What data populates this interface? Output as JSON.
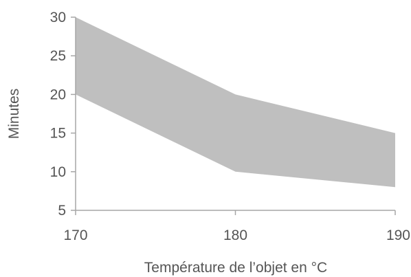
{
  "chart_data": {
    "type": "area",
    "title": "",
    "xlabel": "Température de l’objet en °C",
    "ylabel": "Minutes",
    "x": [
      170,
      180,
      190
    ],
    "xlim": [
      170,
      190
    ],
    "ylim": [
      5,
      30
    ],
    "xticks": [
      "170",
      "180",
      "190"
    ],
    "yticks": [
      "5",
      "10",
      "15",
      "20",
      "25",
      "30"
    ],
    "series": [
      {
        "values": [
          20,
          10,
          8
        ]
      },
      {
        "values": [
          30,
          20,
          15
        ]
      }
    ],
    "band_color": "#bfbfbf",
    "axis_color": "#a6a6a6",
    "text_color": "#555555",
    "grid": false,
    "legend": "none"
  }
}
